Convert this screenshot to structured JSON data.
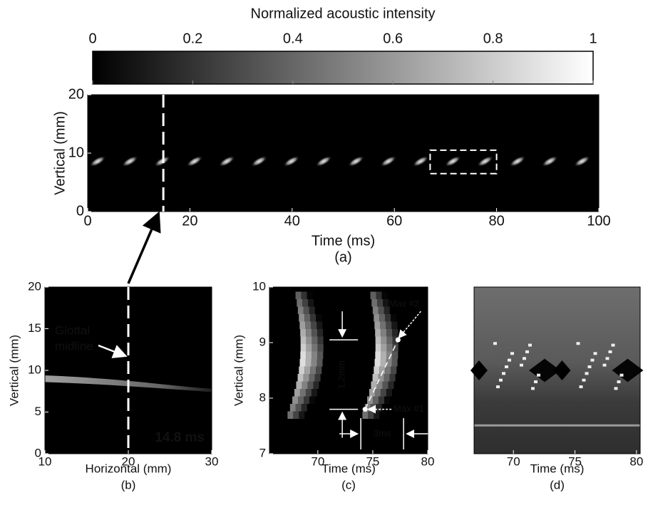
{
  "chart_data": [
    {
      "type": "colorbar",
      "title": "Normalized acoustic intensity",
      "xlim": [
        0,
        1
      ],
      "xticks": [
        0,
        0.2,
        0.4,
        0.6,
        0.8,
        1
      ]
    },
    {
      "type": "heatmap",
      "xlabel": "Time (ms)",
      "ylabel": "Vertical (mm)",
      "panel_label": "(a)",
      "xlim": [
        0,
        100
      ],
      "ylim": [
        0,
        20
      ],
      "xticks": [
        0,
        20,
        40,
        60,
        80,
        100
      ],
      "yticks": [
        0,
        10,
        20
      ],
      "marker_x": 14.8,
      "box": {
        "x": [
          67,
          80
        ],
        "y": [
          6.5,
          10.5
        ]
      }
    },
    {
      "type": "heatmap",
      "xlabel": "Horizontal (mm)",
      "ylabel": "Vertical (mm)",
      "panel_label": "(b)",
      "xlim": [
        10,
        30
      ],
      "ylim": [
        0,
        20
      ],
      "xticks": [
        10,
        20,
        30
      ],
      "yticks": [
        0,
        5,
        10,
        15,
        20
      ],
      "marker_x": 20,
      "annotation": [
        "Glottal",
        "midline"
      ],
      "time_label": "14.8 ms"
    },
    {
      "type": "heatmap",
      "xlabel": "Time (ms)",
      "ylabel": "Vertical (mm)",
      "panel_label": "(c)",
      "xlim": [
        65.6,
        80
      ],
      "ylim": [
        7,
        10
      ],
      "xticks": [
        70,
        75,
        80
      ],
      "yticks": [
        7,
        8,
        9,
        10
      ],
      "points": [
        {
          "label": "Max #1",
          "x": 74.3,
          "y": 7.8
        },
        {
          "label": "Max #2",
          "x": 77.3,
          "y": 9.05
        }
      ],
      "vertical_span": "1.2mm",
      "time_span": "3ms"
    },
    {
      "type": "heatmap",
      "xlabel": "Time (ms)",
      "panel_label": "(d)",
      "xlim": [
        66.8,
        80.3
      ],
      "xticks": [
        70,
        75,
        80
      ]
    }
  ]
}
